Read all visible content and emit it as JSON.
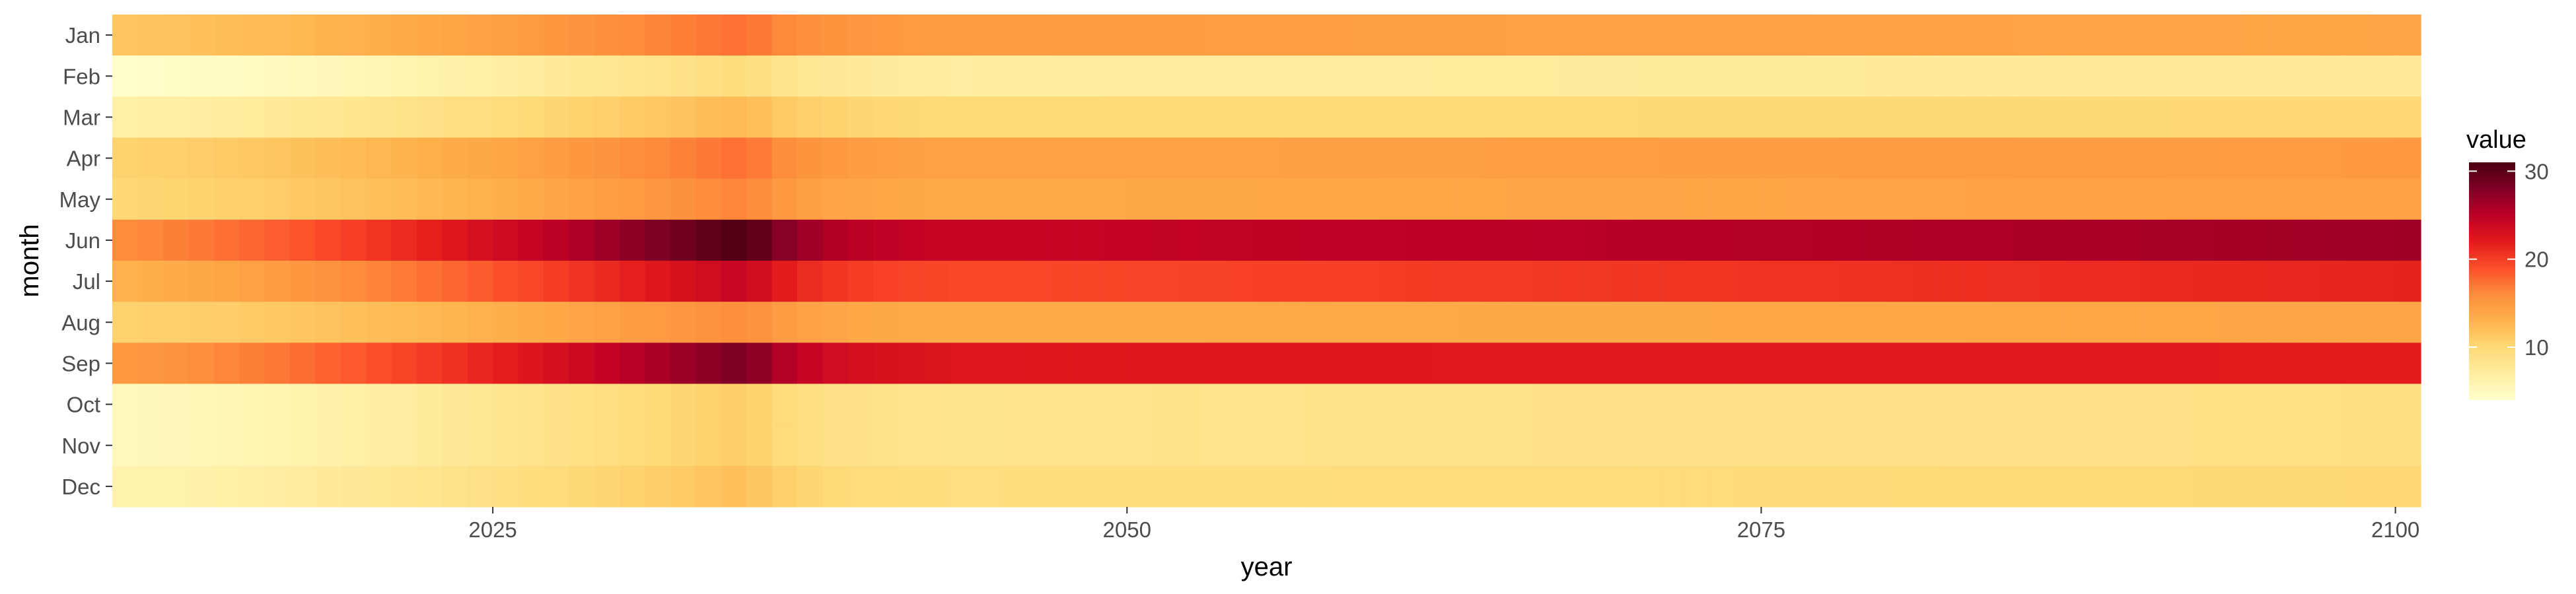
{
  "chart_data": {
    "type": "heatmap",
    "title": "",
    "xlabel": "year",
    "ylabel": "month",
    "xlim": [
      2010,
      2101
    ],
    "x_ticks": [
      2025,
      2050,
      2075,
      2100
    ],
    "categories": [
      "Jan",
      "Feb",
      "Mar",
      "Apr",
      "May",
      "Jun",
      "Jul",
      "Aug",
      "Sep",
      "Oct",
      "Nov",
      "Dec"
    ],
    "legend": {
      "title": "value",
      "position": "right",
      "ticks": [
        10,
        20,
        30
      ],
      "range": [
        4,
        31
      ],
      "colors": [
        "#FFFFCC",
        "#FFEDA0",
        "#FED976",
        "#FEB24C",
        "#FD8D3C",
        "#FC4E2A",
        "#E31A1C",
        "#BD0026",
        "#800026",
        "#4A0010"
      ]
    },
    "grid": false,
    "rows": [
      {
        "month": "Jan",
        "start": 11.5,
        "peak": 17.5,
        "end": 14.0
      },
      {
        "month": "Feb",
        "start": 4.0,
        "peak": 9.5,
        "end": 7.5
      },
      {
        "month": "Mar",
        "start": 6.5,
        "peak": 12.5,
        "end": 10.0
      },
      {
        "month": "Apr",
        "start": 10.5,
        "peak": 17.5,
        "end": 15.0
      },
      {
        "month": "May",
        "start": 10.0,
        "peak": 16.5,
        "end": 14.5
      },
      {
        "month": "Jun",
        "start": 16.0,
        "peak": 31.0,
        "end": 26.5
      },
      {
        "month": "Jul",
        "start": 13.0,
        "peak": 24.5,
        "end": 21.5
      },
      {
        "month": "Aug",
        "start": 10.5,
        "peak": 16.0,
        "end": 14.0
      },
      {
        "month": "Sep",
        "start": 15.0,
        "peak": 28.5,
        "end": 22.0
      },
      {
        "month": "Oct",
        "start": 5.0,
        "peak": 11.0,
        "end": 9.0
      },
      {
        "month": "Nov",
        "start": 5.0,
        "peak": 11.0,
        "end": 9.0
      },
      {
        "month": "Dec",
        "start": 6.0,
        "peak": 12.0,
        "end": 10.0
      }
    ],
    "peak_year": 2035
  }
}
